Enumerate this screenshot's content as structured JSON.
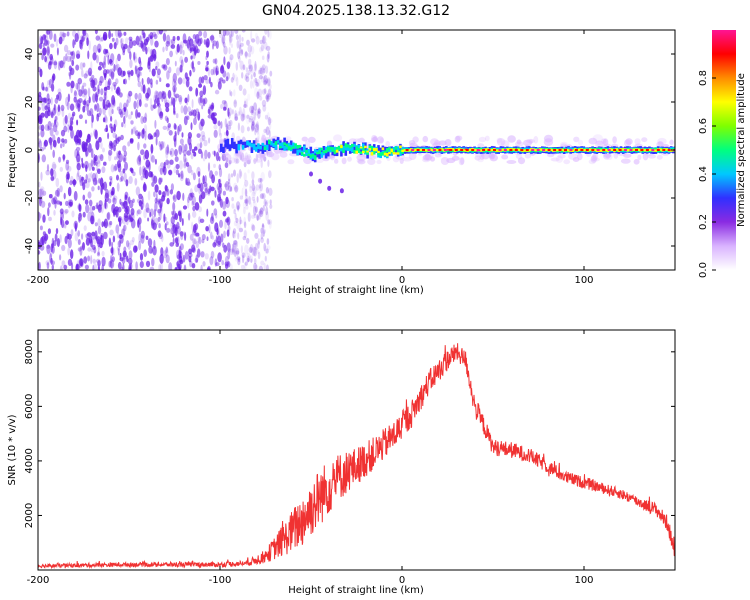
{
  "title": "GN04.2025.138.13.32.G12",
  "colors": {
    "snr_line": "#f03232",
    "noise": "#6a1fe6",
    "colormap": [
      "#ffffff",
      "#d9b3ff",
      "#8a2be2",
      "#3030ff",
      "#00c8ff",
      "#00ff7f",
      "#7fff00",
      "#ffff00",
      "#ff8c00",
      "#ff0000",
      "#ff1493"
    ]
  },
  "chart_data": [
    {
      "type": "heatmap",
      "title": "GN04.2025.138.13.32.G12",
      "xlabel": "Height of straight line (km)",
      "ylabel": "Frequency (Hz)",
      "xlim": [
        -200,
        150
      ],
      "ylim": [
        -50,
        50
      ],
      "xticks": [
        -200,
        -100,
        0,
        100
      ],
      "yticks": [
        -40,
        -20,
        0,
        20,
        40
      ],
      "colorbar": {
        "label": "Normalized spectral amplitude",
        "range": [
          0,
          1
        ],
        "ticks": [
          0.0,
          0.2,
          0.4,
          0.6,
          0.8
        ]
      },
      "noise_region_x": [
        -200,
        -80
      ],
      "signal_frequency_hz": 0,
      "signal_track": [
        {
          "x": -100,
          "freq": 1,
          "amp": 0.25
        },
        {
          "x": -90,
          "freq": 2,
          "amp": 0.35
        },
        {
          "x": -80,
          "freq": 1,
          "amp": 0.45
        },
        {
          "x": -70,
          "freq": 3,
          "amp": 0.55
        },
        {
          "x": -60,
          "freq": 1,
          "amp": 0.6
        },
        {
          "x": -50,
          "freq": -2,
          "amp": 0.65
        },
        {
          "x": -40,
          "freq": 0,
          "amp": 0.7
        },
        {
          "x": -30,
          "freq": 1,
          "amp": 0.75
        },
        {
          "x": -20,
          "freq": 0,
          "amp": 0.8
        },
        {
          "x": -10,
          "freq": -1,
          "amp": 0.8
        },
        {
          "x": 0,
          "freq": 0,
          "amp": 0.85
        },
        {
          "x": 25,
          "freq": 0,
          "amp": 0.9
        },
        {
          "x": 50,
          "freq": 0,
          "amp": 0.9
        },
        {
          "x": 75,
          "freq": 0,
          "amp": 0.85
        },
        {
          "x": 100,
          "freq": 0,
          "amp": 0.85
        },
        {
          "x": 125,
          "freq": 0,
          "amp": 0.85
        },
        {
          "x": 150,
          "freq": 0,
          "amp": 0.8
        }
      ],
      "trail_points": [
        {
          "x": -50,
          "freq": -10
        },
        {
          "x": -45,
          "freq": -13
        },
        {
          "x": -40,
          "freq": -16
        },
        {
          "x": -33,
          "freq": -17
        }
      ]
    },
    {
      "type": "line",
      "xlabel": "Height of straight line (km)",
      "ylabel": "SNR (10 * v/v)",
      "xlim": [
        -200,
        150
      ],
      "ylim": [
        0,
        8800
      ],
      "xticks": [
        -200,
        -100,
        0,
        100
      ],
      "yticks": [
        2000,
        4000,
        6000,
        8000
      ],
      "series": [
        {
          "x": [
            -200,
            -150,
            -100,
            -85,
            -75,
            -65,
            -55,
            -45,
            -35,
            -25,
            -15,
            -5,
            5,
            15,
            25,
            30,
            35,
            40,
            45,
            50,
            60,
            70,
            80,
            90,
            100,
            110,
            120,
            130,
            140,
            146,
            150
          ],
          "y": [
            150,
            200,
            200,
            250,
            500,
            1100,
            1800,
            2700,
            3400,
            3800,
            4300,
            4900,
            5700,
            6900,
            7700,
            8000,
            7700,
            6000,
            5300,
            4500,
            4400,
            4200,
            3800,
            3400,
            3200,
            3000,
            2800,
            2500,
            2200,
            1700,
            600
          ],
          "noise_amplitude": [
            70,
            80,
            90,
            100,
            250,
            600,
            1000,
            1100,
            900,
            700,
            600,
            550,
            500,
            450,
            400,
            350,
            350,
            400,
            350,
            300,
            300,
            280,
            250,
            230,
            220,
            200,
            200,
            200,
            250,
            300,
            300
          ]
        }
      ]
    }
  ]
}
